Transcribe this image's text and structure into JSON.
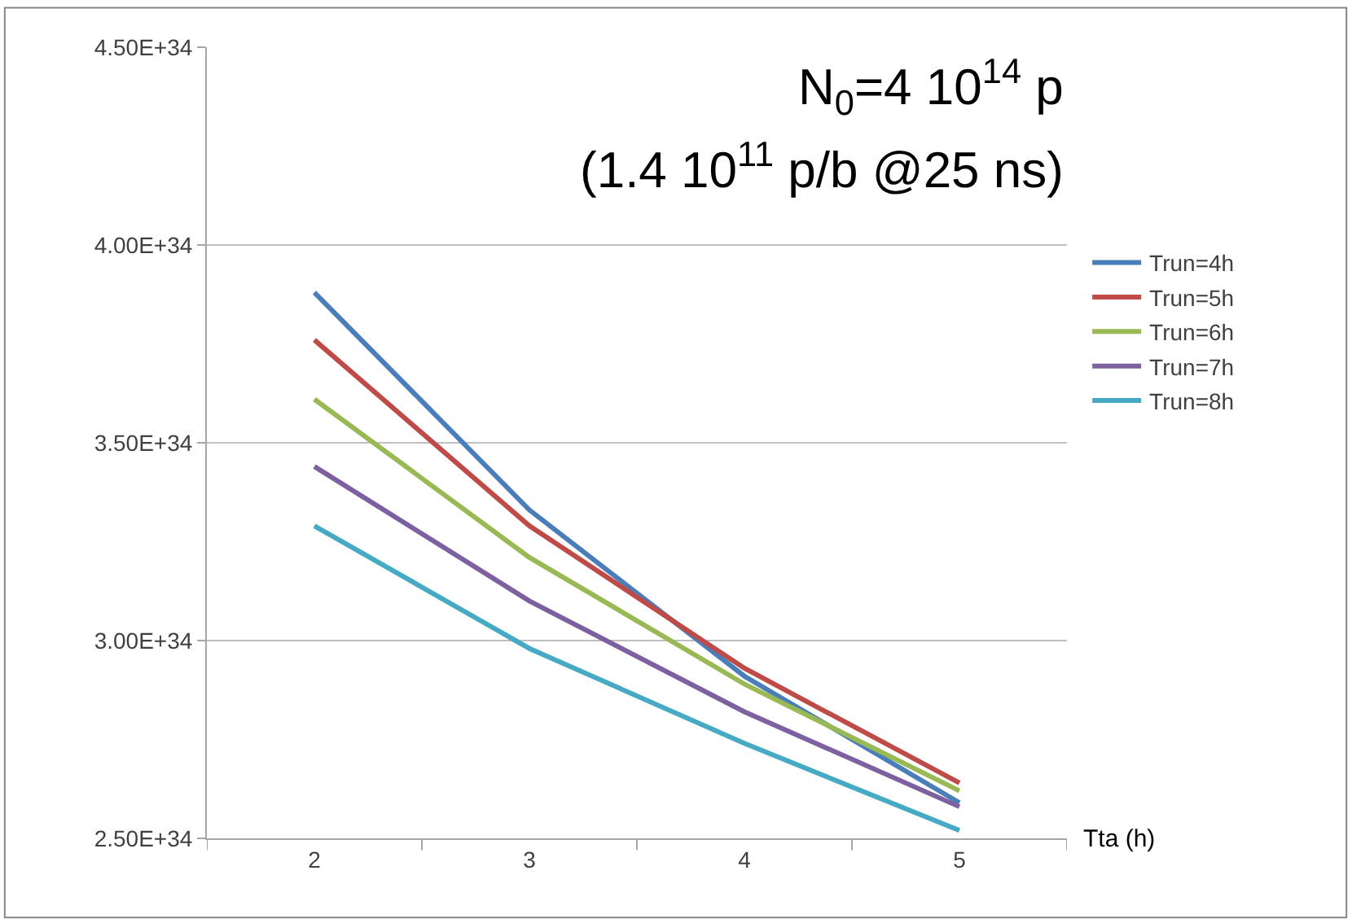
{
  "chart_data": {
    "type": "line",
    "xlabel": "Tta (h)",
    "categories": [
      "2",
      "3",
      "4",
      "5"
    ],
    "series": [
      {
        "name": "Trun=4h",
        "color": "#4a7ebb",
        "values": [
          3.88e+34,
          3.33e+34,
          2.91e+34,
          2.59e+34
        ]
      },
      {
        "name": "Trun=5h",
        "color": "#be4b48",
        "values": [
          3.76e+34,
          3.29e+34,
          2.93e+34,
          2.64e+34
        ]
      },
      {
        "name": "Trun=6h",
        "color": "#98b954",
        "values": [
          3.61e+34,
          3.21e+34,
          2.89e+34,
          2.62e+34
        ]
      },
      {
        "name": "Trun=7h",
        "color": "#7d60a0",
        "values": [
          3.44e+34,
          3.1e+34,
          2.82e+34,
          2.58e+34
        ]
      },
      {
        "name": "Trun=8h",
        "color": "#46aac5",
        "values": [
          3.29e+34,
          2.98e+34,
          2.74e+34,
          2.52e+34
        ]
      }
    ],
    "ylim": [
      2.5e+34,
      4.5e+34
    ],
    "yticks": [
      {
        "value": 2.5e+34,
        "label": "2.50E+34"
      },
      {
        "value": 3e+34,
        "label": "3.00E+34"
      },
      {
        "value": 3.5e+34,
        "label": "3.50E+34"
      },
      {
        "value": 4e+34,
        "label": "4.00E+34"
      },
      {
        "value": 4.5e+34,
        "label": "4.50E+34"
      }
    ],
    "grid": "y",
    "legend": "right",
    "marker": "none",
    "line_style": "solid",
    "annotations": [
      "N$_{0}$=4 10$^{14}$ p",
      "(1.4 10$^{11}$ p/b @25 ns)"
    ]
  }
}
